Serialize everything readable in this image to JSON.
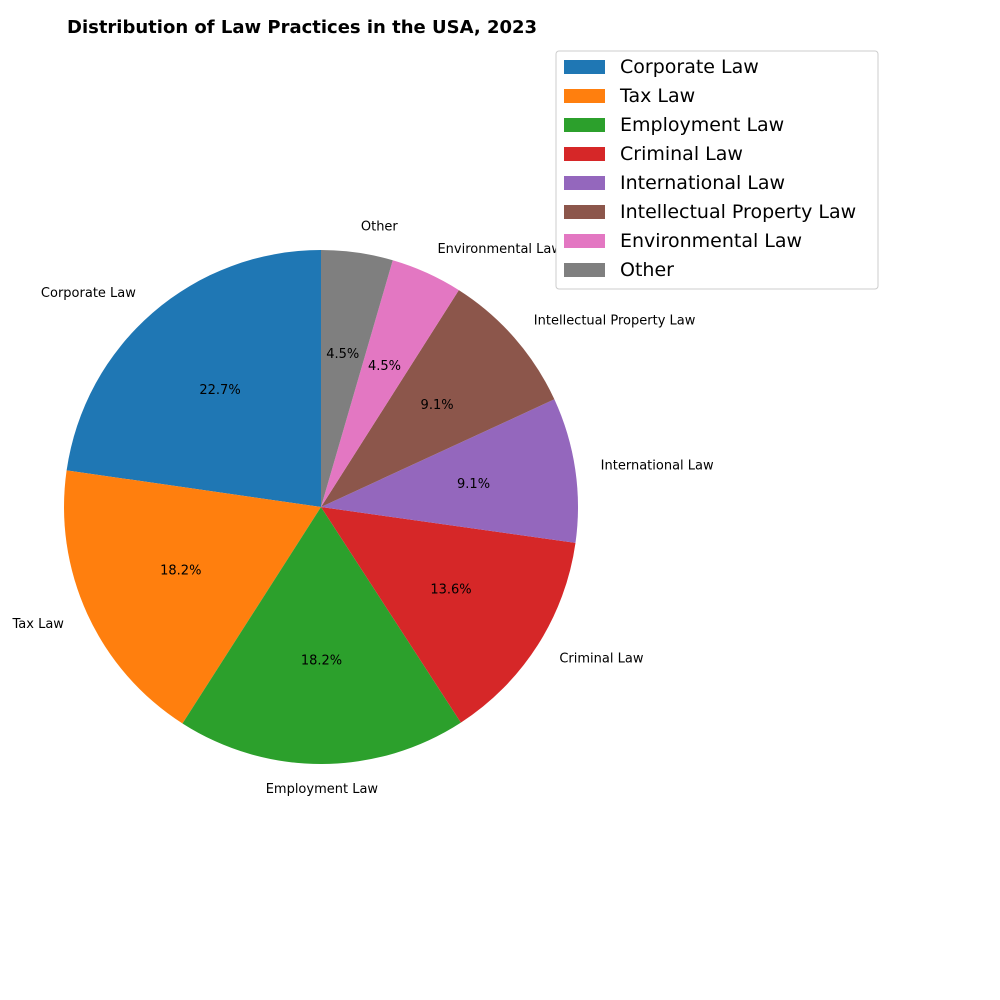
{
  "chart_data": {
    "type": "pie",
    "title": "Distribution of Law Practices in the USA, 2023",
    "categories": [
      "Corporate Law",
      "Tax Law",
      "Employment Law",
      "Criminal Law",
      "International Law",
      "Intellectual Property Law",
      "Environmental Law",
      "Other"
    ],
    "values": [
      22.7,
      18.2,
      18.2,
      13.6,
      9.1,
      9.1,
      4.5,
      4.5
    ],
    "percent_labels": [
      "22.7%",
      "18.2%",
      "18.2%",
      "13.6%",
      "9.1%",
      "9.1%",
      "4.5%",
      "4.5%"
    ],
    "colors": [
      "#1f77b4",
      "#ff7f0e",
      "#2ca02c",
      "#d62728",
      "#9467bd",
      "#8c564b",
      "#e377c2",
      "#7f7f7f"
    ],
    "start_angle_deg": 90,
    "direction": "counterclockwise",
    "legend": {
      "placement": "top-right",
      "entries": [
        "Corporate Law",
        "Tax Law",
        "Employment Law",
        "Criminal Law",
        "International Law",
        "Intellectual Property Law",
        "Environmental Law",
        "Other"
      ]
    }
  }
}
